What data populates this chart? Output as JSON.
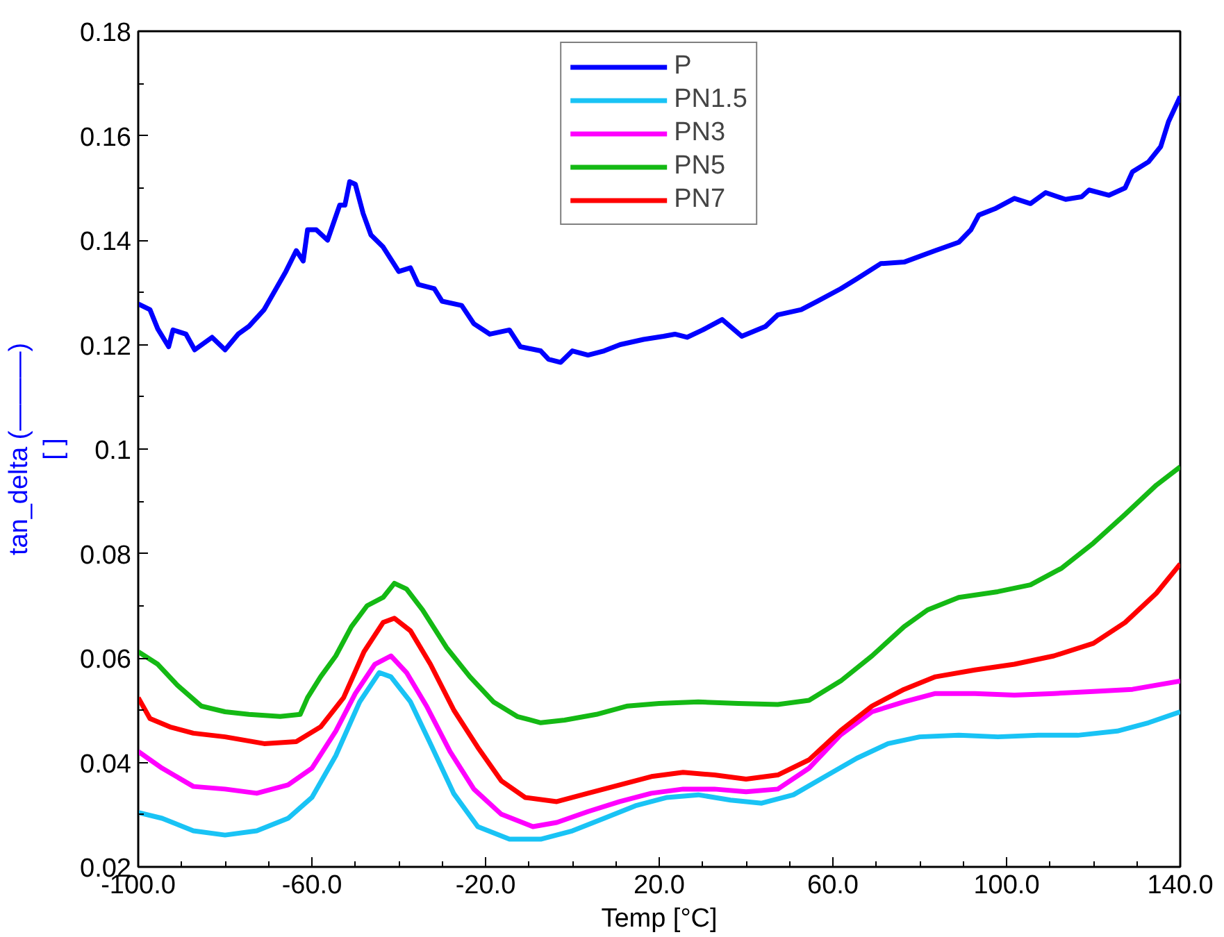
{
  "chart_data": {
    "type": "line",
    "xlabel": "Temp [°C]",
    "ylabel": "tan_delta (———)\n[ ]",
    "xlim": [
      -100,
      140
    ],
    "ylim": [
      0.02,
      0.18
    ],
    "xticks": [
      {
        "value": -100,
        "label": "-100.0"
      },
      {
        "value": -90,
        "label": null
      },
      {
        "value": -80,
        "label": null
      },
      {
        "value": -70,
        "label": null
      },
      {
        "value": -60,
        "label": "-60.0"
      },
      {
        "value": -50,
        "label": null
      },
      {
        "value": -40,
        "label": null
      },
      {
        "value": -30,
        "label": null
      },
      {
        "value": -20,
        "label": "-20.0"
      },
      {
        "value": -10,
        "label": null
      },
      {
        "value": 0,
        "label": null
      },
      {
        "value": 10,
        "label": null
      },
      {
        "value": 20,
        "label": "20.0"
      },
      {
        "value": 30,
        "label": null
      },
      {
        "value": 40,
        "label": null
      },
      {
        "value": 50,
        "label": null
      },
      {
        "value": 60,
        "label": "60.0"
      },
      {
        "value": 70,
        "label": null
      },
      {
        "value": 80,
        "label": null
      },
      {
        "value": 90,
        "label": null
      },
      {
        "value": 100,
        "label": "100.0"
      },
      {
        "value": 110,
        "label": null
      },
      {
        "value": 120,
        "label": null
      },
      {
        "value": 130,
        "label": null
      },
      {
        "value": 140,
        "label": "140.0"
      }
    ],
    "yticks": [
      0.02,
      {
        "value": 0.03,
        "label": null
      },
      0.04,
      {
        "value": 0.05,
        "label": null
      },
      0.06,
      {
        "value": 0.07,
        "label": null
      },
      0.08,
      {
        "value": 0.09,
        "label": null
      },
      0.1,
      {
        "value": 0.11,
        "label": null
      },
      0.12,
      {
        "value": 0.13,
        "label": null
      },
      0.14,
      {
        "value": 0.15,
        "label": null
      },
      0.16,
      {
        "value": 0.17,
        "label": null
      },
      0.18
    ],
    "grid": false,
    "legend": "top",
    "marker": "none",
    "line_style": "solid",
    "series": [
      {
        "name": "P",
        "color": "#0000ff",
        "x": [
          -100,
          -97.3,
          -95.5,
          -93,
          -92,
          -89,
          -87,
          -83,
          -80,
          -77,
          -74.5,
          -71,
          -66,
          -63.6,
          -62,
          -61,
          -59,
          -56.4,
          -53.6,
          -52.4,
          -51.3,
          -50,
          -48.2,
          -46.4,
          -43.6,
          -40,
          -37.3,
          -35.5,
          -31.8,
          -30,
          -25.5,
          -22.7,
          -19,
          -14.5,
          -12,
          -7.3,
          -5.5,
          -2.7,
          0,
          3.6,
          7.3,
          11,
          16.4,
          21,
          23.6,
          26.4,
          30,
          34.5,
          39,
          44.5,
          47.3,
          52.7,
          56.4,
          61.8,
          65.5,
          71,
          76.4,
          83.6,
          89,
          91.8,
          93.6,
          97.3,
          101.8,
          105.5,
          109,
          113.6,
          117.3,
          119,
          123.6,
          127.3,
          129,
          132.7,
          135.5,
          137.3,
          140
        ],
        "values": [
          0.1278,
          0.1267,
          0.123,
          0.1196,
          0.1228,
          0.122,
          0.119,
          0.1214,
          0.119,
          0.122,
          0.1235,
          0.1267,
          0.134,
          0.138,
          0.136,
          0.142,
          0.142,
          0.14,
          0.1467,
          0.1467,
          0.1512,
          0.1507,
          0.1451,
          0.141,
          0.1387,
          0.134,
          0.1347,
          0.1315,
          0.1307,
          0.1283,
          0.1275,
          0.124,
          0.122,
          0.1228,
          0.1196,
          0.1188,
          0.1172,
          0.1166,
          0.1188,
          0.118,
          0.1188,
          0.12,
          0.121,
          0.1216,
          0.122,
          0.1214,
          0.1228,
          0.1248,
          0.1216,
          0.1235,
          0.1257,
          0.1267,
          0.1283,
          0.1307,
          0.1326,
          0.1355,
          0.1358,
          0.138,
          0.1396,
          0.142,
          0.1448,
          0.146,
          0.148,
          0.147,
          0.1491,
          0.1478,
          0.1483,
          0.1496,
          0.1486,
          0.15,
          0.1531,
          0.155,
          0.1579,
          0.1627,
          0.1675
        ]
      },
      {
        "name": "PN1.5",
        "color": "#19c3f5",
        "x": [
          -100,
          -94.5,
          -87.3,
          -80,
          -72.7,
          -65.5,
          -60,
          -54.5,
          -49,
          -44.5,
          -41.8,
          -37.3,
          -32.7,
          -27.3,
          -21.8,
          -14.5,
          -7.3,
          0,
          7.3,
          14.5,
          21.8,
          29,
          36.4,
          43.6,
          50.9,
          58.2,
          65.5,
          72.7,
          80,
          89,
          98,
          107.3,
          116.4,
          125.5,
          132.7,
          140
        ],
        "values": [
          0.0304,
          0.0293,
          0.0269,
          0.0261,
          0.0269,
          0.0293,
          0.0333,
          0.0413,
          0.0516,
          0.0572,
          0.0564,
          0.0516,
          0.0436,
          0.034,
          0.0277,
          0.0253,
          0.0253,
          0.0269,
          0.0293,
          0.0317,
          0.0333,
          0.0338,
          0.0328,
          0.0322,
          0.0338,
          0.0373,
          0.0408,
          0.0436,
          0.0449,
          0.0452,
          0.0449,
          0.0452,
          0.0452,
          0.046,
          0.0476,
          0.0497
        ]
      },
      {
        "name": "PN3",
        "color": "#ff00ff",
        "x": [
          -100,
          -94.5,
          -87.3,
          -80,
          -72.7,
          -65.5,
          -60,
          -54.5,
          -50,
          -45.5,
          -41.8,
          -38.2,
          -33.6,
          -28.2,
          -22.7,
          -16.4,
          -9.1,
          -3.6,
          3.6,
          10.9,
          18.2,
          25.5,
          32.7,
          40,
          47.3,
          54.5,
          61.8,
          69,
          76.4,
          83.6,
          92.7,
          101.8,
          110.9,
          120,
          129,
          140
        ],
        "values": [
          0.0421,
          0.0389,
          0.0354,
          0.0349,
          0.0341,
          0.0357,
          0.0389,
          0.046,
          0.0532,
          0.0588,
          0.0604,
          0.0572,
          0.0508,
          0.0421,
          0.0349,
          0.0301,
          0.0277,
          0.0285,
          0.0306,
          0.0325,
          0.0341,
          0.0349,
          0.0349,
          0.0344,
          0.0349,
          0.0389,
          0.0453,
          0.0497,
          0.0516,
          0.0532,
          0.0532,
          0.0529,
          0.0532,
          0.0536,
          0.054,
          0.0556
        ]
      },
      {
        "name": "PN5",
        "color": "#14b914",
        "x": [
          -100,
          -95.5,
          -91,
          -85.5,
          -80,
          -74.5,
          -67.3,
          -62.7,
          -61,
          -58,
          -54.5,
          -50.9,
          -47.3,
          -43.6,
          -41,
          -38.2,
          -34.5,
          -29,
          -23.6,
          -18.2,
          -12.7,
          -7.3,
          -1.8,
          5.5,
          12.7,
          20,
          29,
          38.2,
          47.3,
          54.5,
          61.8,
          69,
          76.4,
          81.8,
          89,
          98,
          105.5,
          112.7,
          120,
          127.3,
          134.5,
          140
        ],
        "values": [
          0.0612,
          0.0588,
          0.0548,
          0.0508,
          0.0497,
          0.0492,
          0.0488,
          0.0492,
          0.0524,
          0.0564,
          0.0604,
          0.066,
          0.07,
          0.0716,
          0.0743,
          0.0732,
          0.0692,
          0.062,
          0.0564,
          0.0516,
          0.0488,
          0.0476,
          0.0481,
          0.0492,
          0.0508,
          0.0513,
          0.0516,
          0.0513,
          0.0511,
          0.0519,
          0.0556,
          0.0604,
          0.066,
          0.0692,
          0.0716,
          0.0727,
          0.074,
          0.0772,
          0.082,
          0.0875,
          0.0931,
          0.0966
        ]
      },
      {
        "name": "PN7",
        "color": "#ff0000",
        "x": [
          -100,
          -97.3,
          -92.7,
          -87.3,
          -80,
          -71,
          -63.6,
          -58,
          -52.7,
          -48,
          -43.6,
          -41,
          -37.3,
          -32.7,
          -27.3,
          -21.8,
          -16.4,
          -10.9,
          -3.6,
          3.6,
          10.9,
          18.2,
          25.5,
          32.7,
          40,
          47.3,
          54.5,
          61.8,
          69,
          76.4,
          83.6,
          92.7,
          101.8,
          110.9,
          120,
          127.3,
          134.5,
          140
        ],
        "values": [
          0.0524,
          0.0484,
          0.0468,
          0.0456,
          0.0449,
          0.0436,
          0.044,
          0.0468,
          0.0524,
          0.0612,
          0.0668,
          0.0676,
          0.0652,
          0.0588,
          0.05,
          0.0429,
          0.0365,
          0.0333,
          0.0325,
          0.0341,
          0.0357,
          0.0373,
          0.0381,
          0.0376,
          0.0368,
          0.0376,
          0.0405,
          0.0461,
          0.0508,
          0.054,
          0.0564,
          0.0577,
          0.0588,
          0.0604,
          0.0628,
          0.0668,
          0.0724,
          0.078
        ]
      }
    ]
  }
}
